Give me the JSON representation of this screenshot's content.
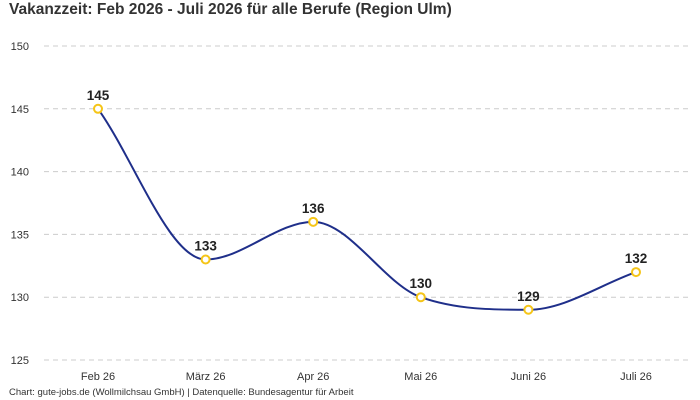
{
  "chart_data": {
    "type": "line",
    "title": "Vakanzzeit: Feb 2026 - Juli 2026 für alle Berufe (Region Ulm)",
    "categories": [
      "Feb 26",
      "März 26",
      "Apr 26",
      "Mai 26",
      "Juni 26",
      "Juli 26"
    ],
    "series": [
      {
        "values": [
          145,
          133,
          136,
          130,
          129,
          132
        ]
      }
    ],
    "y_ticks": [
      125,
      130,
      135,
      140,
      145,
      150
    ],
    "ylim": [
      125,
      150
    ],
    "xlabel": "",
    "ylabel": "",
    "grid": "horizontal dashed",
    "smooth": true,
    "data_labels": true,
    "colors": {
      "line": "#1f2f8a",
      "marker_stroke": "#f5c518",
      "marker_fill": "#ffffff",
      "grid": "#cccccc"
    }
  },
  "footer": "Chart: gute-jobs.de (Wollmilchsau GmbH) | Datenquelle: Bundesagentur für Arbeit"
}
